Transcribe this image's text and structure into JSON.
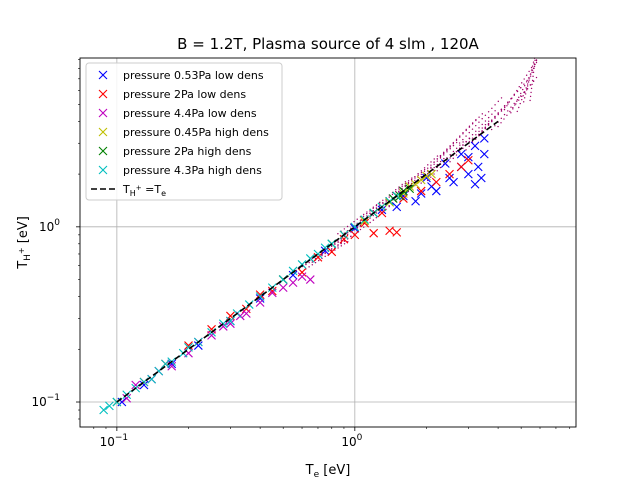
{
  "chart_data": {
    "type": "scatter",
    "title": "B = 1.2T, Plasma source of 4 slm , 120A",
    "xlabel": "T",
    "xlabel_sub": "e",
    "xlabel_unit": " [eV]",
    "ylabel": "T",
    "ylabel_sub": "H",
    "ylabel_sup": "+",
    "ylabel_unit": " [eV]",
    "xscale": "log",
    "yscale": "log",
    "xlim": [
      0.07,
      8.5
    ],
    "ylim": [
      0.072,
      9.2
    ],
    "grid": true,
    "legend_position": "top-left",
    "x_ticks": [
      {
        "value": 0.1,
        "base": "10",
        "exp": "−1"
      },
      {
        "value": 1.0,
        "base": "10",
        "exp": "0"
      }
    ],
    "y_ticks": [
      {
        "value": 0.1,
        "base": "10",
        "exp": "−1"
      },
      {
        "value": 1.0,
        "base": "10",
        "exp": "0"
      }
    ],
    "series": [
      {
        "name": "pressure 0.53Pa low dens",
        "color": "#0000ff",
        "marker": "x",
        "points": [
          [
            0.105,
            0.1
          ],
          [
            0.13,
            0.125
          ],
          [
            0.17,
            0.165
          ],
          [
            0.22,
            0.21
          ],
          [
            0.3,
            0.29
          ],
          [
            0.4,
            0.39
          ],
          [
            0.55,
            0.53
          ],
          [
            0.75,
            0.73
          ],
          [
            1.0,
            0.98
          ],
          [
            1.3,
            1.25
          ],
          [
            1.6,
            1.5
          ],
          [
            2.0,
            1.9
          ],
          [
            2.4,
            2.3
          ],
          [
            2.8,
            2.6
          ],
          [
            3.2,
            2.9
          ],
          [
            3.5,
            3.2
          ],
          [
            1.5,
            1.3
          ],
          [
            1.8,
            1.4
          ],
          [
            2.2,
            1.6
          ],
          [
            2.6,
            1.8
          ],
          [
            3.0,
            2.0
          ],
          [
            3.4,
            1.9
          ],
          [
            3.0,
            2.5
          ],
          [
            3.3,
            2.2
          ],
          [
            2.8,
            2.2
          ],
          [
            2.5,
            1.9
          ],
          [
            2.1,
            1.7
          ],
          [
            1.9,
            1.55
          ],
          [
            3.5,
            2.6
          ],
          [
            3.2,
            1.75
          ]
        ]
      },
      {
        "name": "pressure 2Pa low dens",
        "color": "#ff0000",
        "marker": "x",
        "points": [
          [
            0.13,
            0.13
          ],
          [
            0.16,
            0.165
          ],
          [
            0.2,
            0.21
          ],
          [
            0.25,
            0.26
          ],
          [
            0.3,
            0.31
          ],
          [
            0.4,
            0.41
          ],
          [
            0.5,
            0.5
          ],
          [
            0.7,
            0.67
          ],
          [
            0.9,
            0.85
          ],
          [
            1.0,
            0.9
          ],
          [
            1.2,
            0.92
          ],
          [
            1.4,
            0.95
          ],
          [
            1.5,
            0.93
          ],
          [
            0.6,
            0.55
          ],
          [
            0.8,
            0.72
          ],
          [
            1.1,
            1.05
          ],
          [
            1.3,
            1.2
          ],
          [
            1.6,
            1.45
          ],
          [
            1.9,
            1.6
          ],
          [
            2.2,
            1.8
          ],
          [
            2.5,
            2.0
          ],
          [
            2.8,
            2.2
          ],
          [
            3.0,
            2.4
          ],
          [
            0.35,
            0.34
          ],
          [
            0.45,
            0.43
          ]
        ]
      },
      {
        "name": "pressure 4.4Pa low dens",
        "color": "#bf00bf",
        "marker": "x",
        "points": [
          [
            0.11,
            0.105
          ],
          [
            0.14,
            0.135
          ],
          [
            0.17,
            0.16
          ],
          [
            0.2,
            0.19
          ],
          [
            0.25,
            0.24
          ],
          [
            0.3,
            0.28
          ],
          [
            0.35,
            0.32
          ],
          [
            0.4,
            0.37
          ],
          [
            0.5,
            0.45
          ],
          [
            0.6,
            0.52
          ],
          [
            0.65,
            0.5
          ],
          [
            0.55,
            0.48
          ],
          [
            0.45,
            0.42
          ],
          [
            0.12,
            0.125
          ],
          [
            0.15,
            0.15
          ],
          [
            0.22,
            0.22
          ],
          [
            0.28,
            0.27
          ],
          [
            0.33,
            0.31
          ]
        ]
      },
      {
        "name": "pressure 0.45Pa high dens",
        "color": "#bfbf00",
        "marker": "x",
        "points": [
          [
            0.9,
            0.9
          ],
          [
            1.1,
            1.08
          ],
          [
            1.3,
            1.3
          ],
          [
            1.5,
            1.5
          ],
          [
            1.7,
            1.7
          ],
          [
            1.9,
            1.85
          ],
          [
            2.1,
            2.0
          ],
          [
            1.6,
            1.55
          ],
          [
            1.8,
            1.75
          ],
          [
            2.0,
            1.95
          ],
          [
            1.4,
            1.38
          ],
          [
            1.2,
            1.2
          ]
        ]
      },
      {
        "name": "pressure 2Pa high dens",
        "color": "#008000",
        "marker": "x",
        "points": [
          [
            0.1,
            0.1
          ],
          [
            0.5,
            0.5
          ],
          [
            0.8,
            0.8
          ],
          [
            1.2,
            1.2
          ],
          [
            1.5,
            1.5
          ],
          [
            1.6,
            1.6
          ],
          [
            1.7,
            1.65
          ],
          [
            1.55,
            1.5
          ],
          [
            1.45,
            1.45
          ]
        ]
      },
      {
        "name": "pressure 4.3Pa high dens",
        "color": "#00bfbf",
        "marker": "x",
        "points": [
          [
            0.088,
            0.09
          ],
          [
            0.093,
            0.095
          ],
          [
            0.1,
            0.1
          ],
          [
            0.11,
            0.11
          ],
          [
            0.12,
            0.12
          ],
          [
            0.13,
            0.13
          ],
          [
            0.15,
            0.15
          ],
          [
            0.17,
            0.17
          ],
          [
            0.19,
            0.19
          ],
          [
            0.22,
            0.22
          ],
          [
            0.25,
            0.25
          ],
          [
            0.28,
            0.28
          ],
          [
            0.32,
            0.32
          ],
          [
            0.36,
            0.36
          ],
          [
            0.4,
            0.4
          ],
          [
            0.45,
            0.45
          ],
          [
            0.5,
            0.5
          ],
          [
            0.55,
            0.56
          ],
          [
            0.6,
            0.61
          ],
          [
            0.7,
            0.7
          ],
          [
            0.8,
            0.8
          ],
          [
            0.9,
            0.9
          ],
          [
            1.0,
            1.0
          ],
          [
            1.1,
            1.1
          ],
          [
            1.2,
            1.2
          ],
          [
            1.3,
            1.3
          ],
          [
            1.4,
            1.4
          ],
          [
            1.5,
            1.5
          ],
          [
            0.14,
            0.135
          ],
          [
            0.16,
            0.165
          ],
          [
            0.2,
            0.205
          ],
          [
            0.3,
            0.29
          ],
          [
            0.65,
            0.66
          ],
          [
            0.75,
            0.76
          ]
        ]
      }
    ],
    "reference_line": {
      "name": "T_H+ = T_e",
      "label_main": "T",
      "label_sub": "H",
      "label_sup": "+",
      "label_rest": " =T",
      "label_sub2": "e",
      "color": "#000000",
      "style": "dashed",
      "x_range": [
        0.1,
        4.0
      ]
    },
    "dotted_region": {
      "color": "#a0006a",
      "x_range": [
        0.55,
        5.8
      ],
      "note": "dense dotted fan of points above the diagonal"
    }
  }
}
